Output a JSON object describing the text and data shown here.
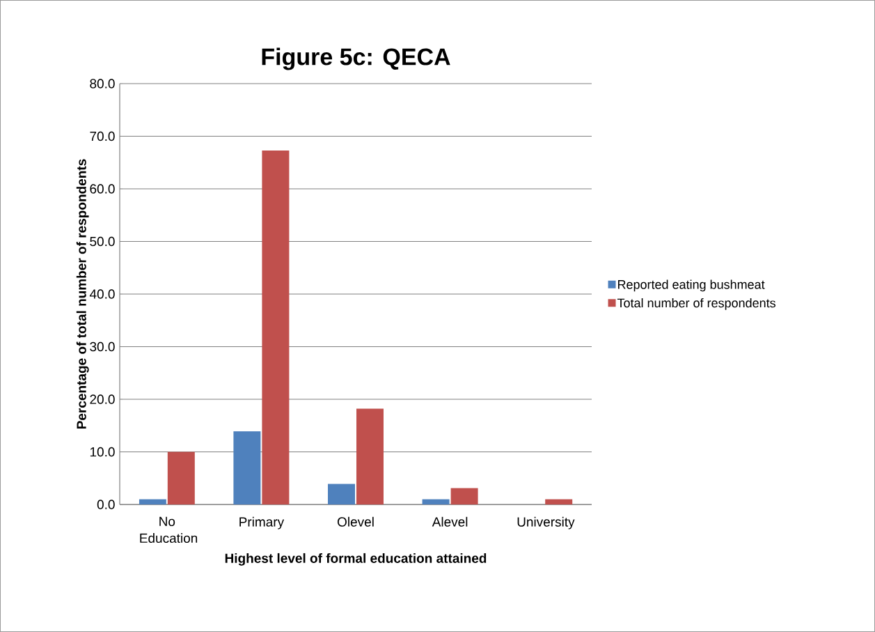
{
  "chart_data": {
    "type": "bar",
    "title": "Figure 5c: QECA",
    "xlabel": "Highest level of formal education attained",
    "ylabel": "Percentage of total number of respondents",
    "categories": [
      "No Education",
      "Primary",
      "Olevel",
      "Alevel",
      "University"
    ],
    "series": [
      {
        "name": "Reported eating bushmeat",
        "color": "#4f81bd",
        "values": [
          1.0,
          13.9,
          3.9,
          1.0,
          0.0
        ]
      },
      {
        "name": "Total number of respondents",
        "color": "#c0504d",
        "values": [
          10.0,
          67.3,
          18.2,
          3.1,
          1.0
        ]
      }
    ],
    "ylim": [
      0,
      80
    ],
    "yticks": [
      {
        "value": 0,
        "label": "0.0"
      },
      {
        "value": 10,
        "label": "10.0"
      },
      {
        "value": 20,
        "label": "20.0"
      },
      {
        "value": 30,
        "label": "30.0"
      },
      {
        "value": 40,
        "label": "40.0"
      },
      {
        "value": 50,
        "label": "50.0"
      },
      {
        "value": 60,
        "label": "60.0"
      },
      {
        "value": 70,
        "label": "70.0"
      },
      {
        "value": 80,
        "label": "80.0"
      }
    ],
    "grid": "y",
    "legend": "right"
  }
}
